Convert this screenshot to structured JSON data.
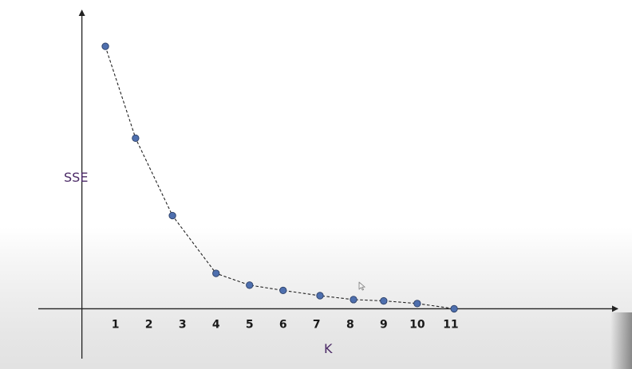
{
  "colors": {
    "axis_label": "#4b2a66",
    "point_fill": "#4e6fae",
    "point_stroke": "#2c3f66",
    "line": "#222222",
    "axis": "#222222"
  },
  "chart_data": {
    "type": "line",
    "title": "",
    "xlabel": "K",
    "ylabel": "SSE",
    "x_ticks": [
      "1",
      "2",
      "3",
      "4",
      "5",
      "6",
      "7",
      "8",
      "9",
      "10",
      "11"
    ],
    "series": [
      {
        "line_style": "dashed",
        "markers": true,
        "points": [
          {
            "x": 0.7,
            "y": 100
          },
          {
            "x": 1.6,
            "y": 65
          },
          {
            "x": 2.7,
            "y": 35.5
          },
          {
            "x": 4.0,
            "y": 13.5
          },
          {
            "x": 5.0,
            "y": 9
          },
          {
            "x": 6.0,
            "y": 7
          },
          {
            "x": 7.1,
            "y": 5
          },
          {
            "x": 8.1,
            "y": 3.5
          },
          {
            "x": 9.0,
            "y": 3
          },
          {
            "x": 10.0,
            "y": 2
          },
          {
            "x": 11.1,
            "y": 0
          }
        ]
      }
    ],
    "xlim": [
      -1.3,
      16
    ],
    "ylim": [
      -19,
      114
    ],
    "y_tick_labels": false,
    "grid": false,
    "legend": "none"
  },
  "overlay": {
    "cursor_icon": "mouse-pointer-icon"
  }
}
